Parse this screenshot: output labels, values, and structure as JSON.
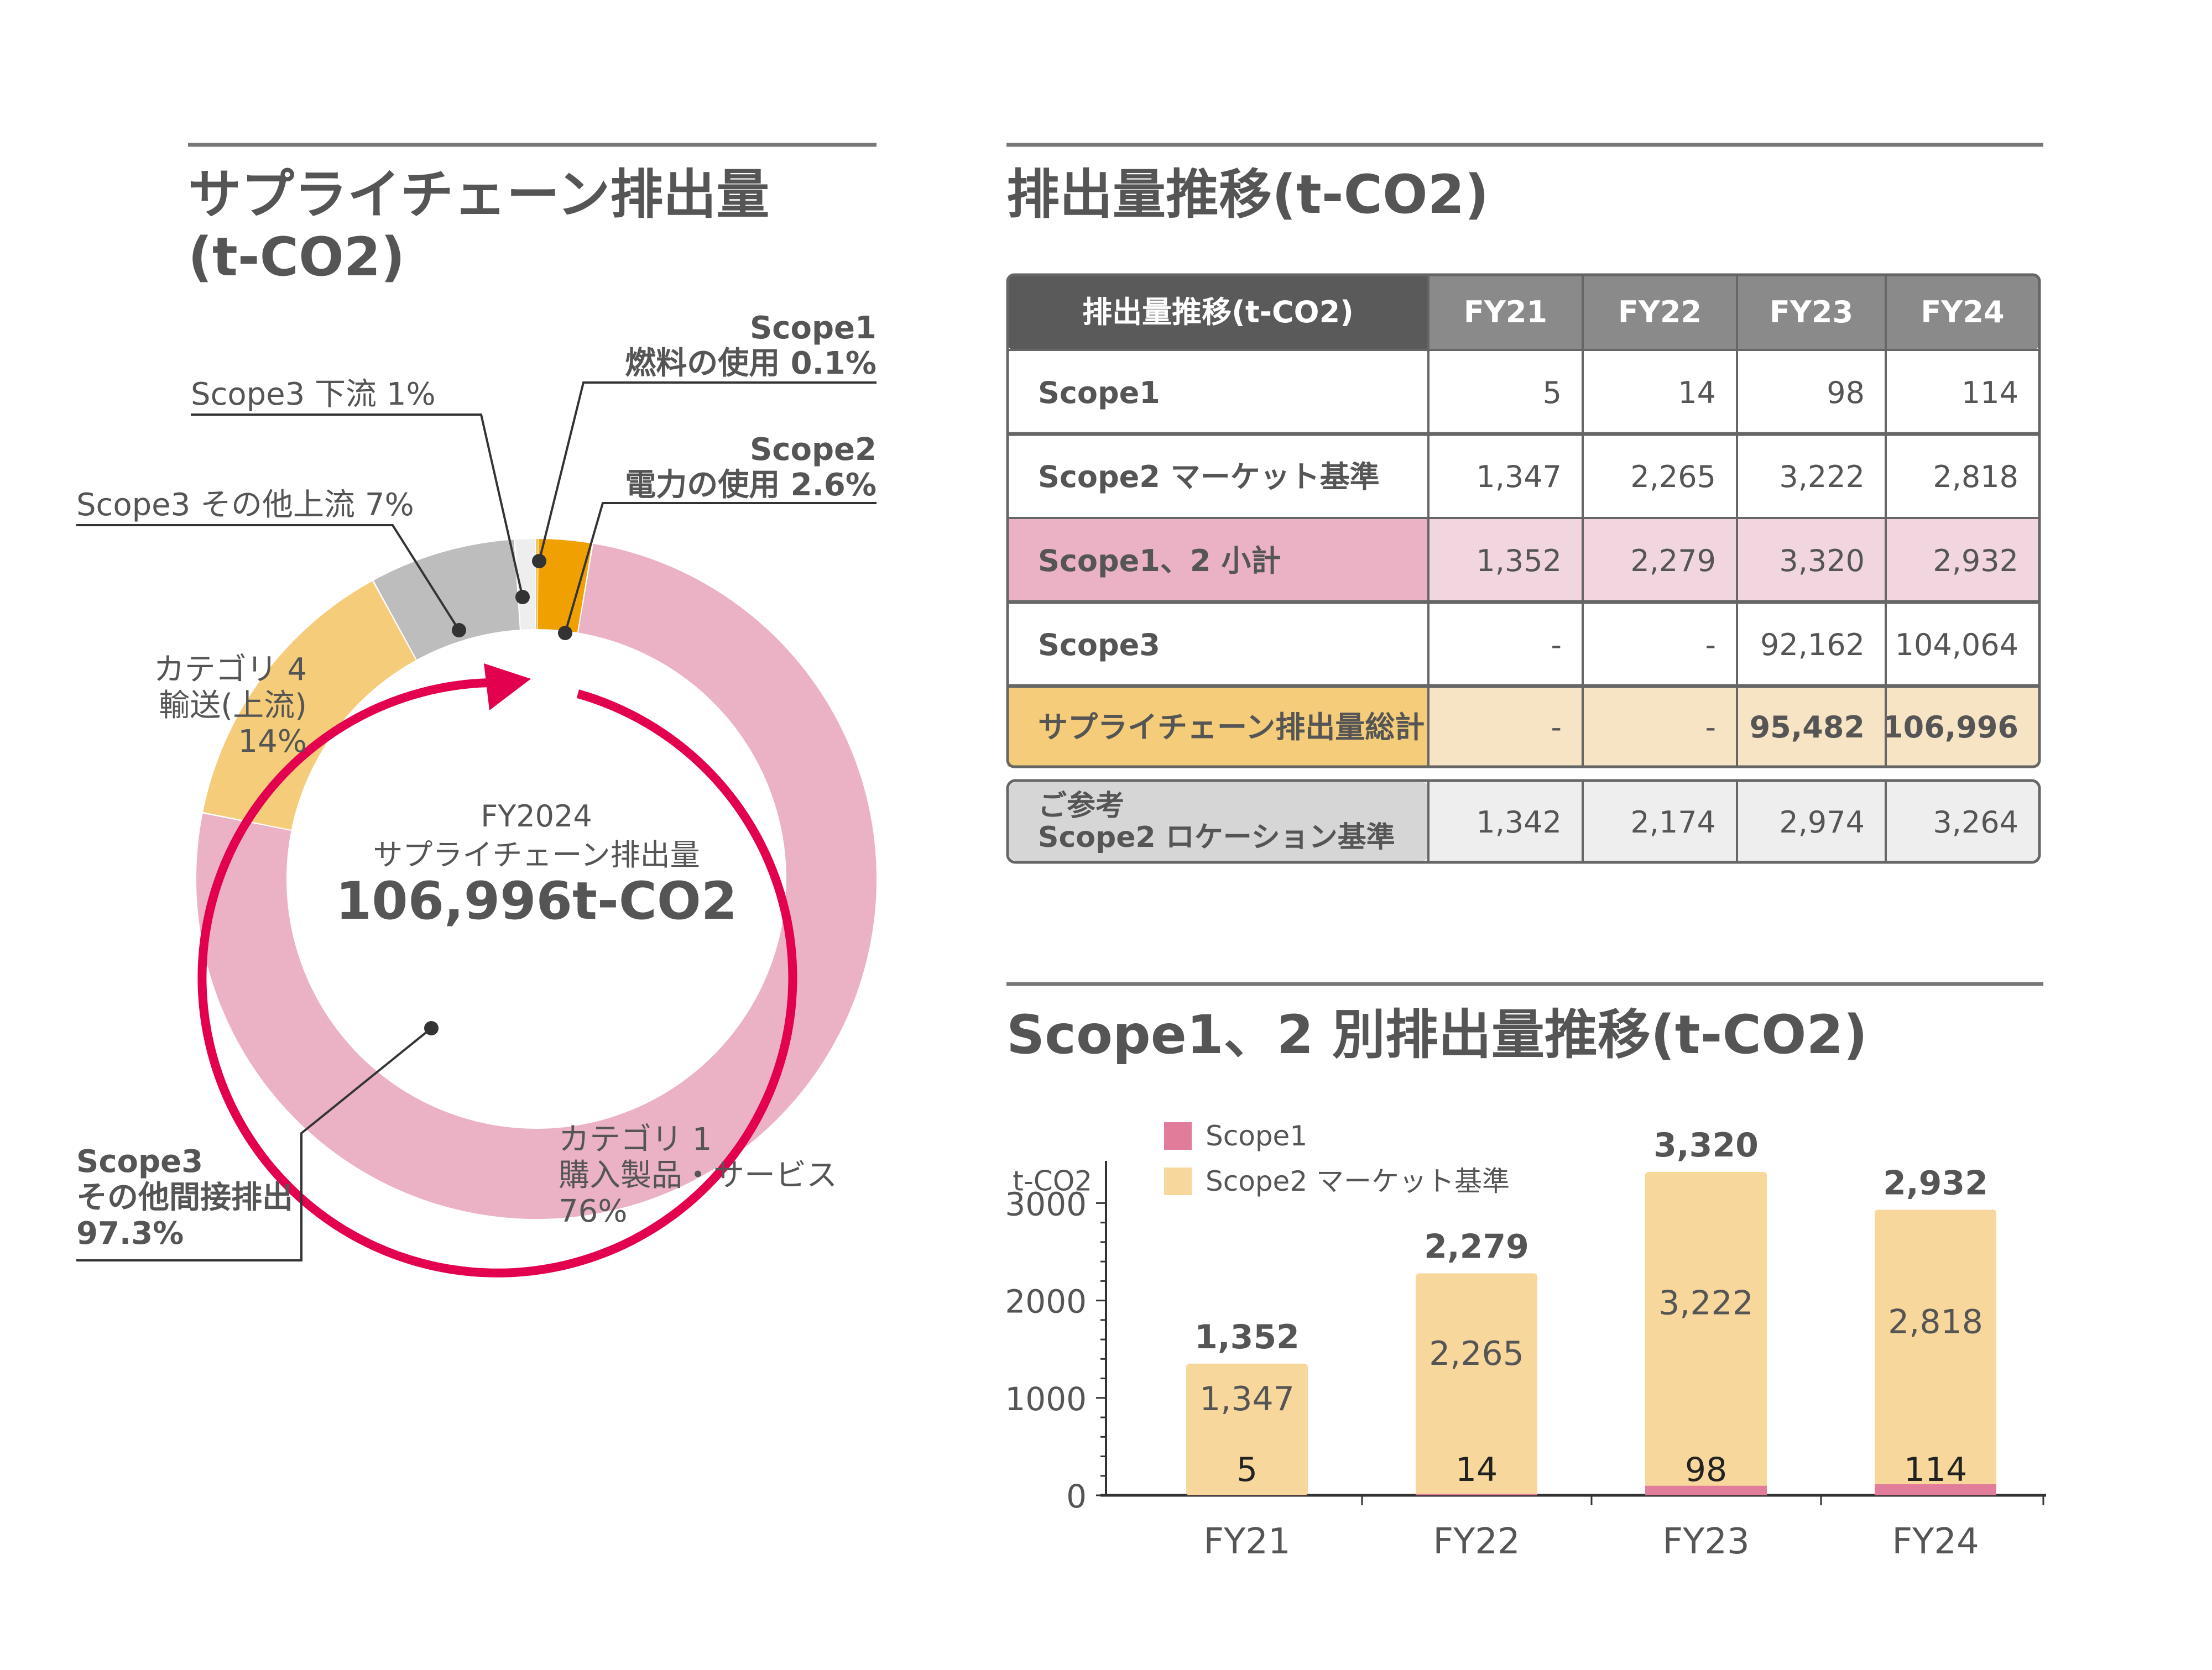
{
  "colors": {
    "text": "#555555",
    "pink": "#ebb2c5",
    "pink_light": "#f1d6df",
    "scope1_orange": "#f0a000",
    "yellow": "#f5cc7a",
    "yellow_light": "#f6e4c5",
    "gray": "#bdbdbd",
    "gray_light": "#eeeeee",
    "gray_mid": "#d6d6d6",
    "header_dark": "#5a5a5a",
    "header_gray": "#8a8a8a",
    "arrow_red": "#e2004f",
    "bar_scope1": "#e27c9b",
    "bar_scope2": "#f8d79c"
  },
  "left": {
    "title_line1": "サプライチェーン排出量",
    "title_line2": "(t-CO2)",
    "center": {
      "year": "FY2024",
      "label": "サプライチェーン排出量",
      "total": "106,996t-CO2"
    },
    "callouts": {
      "scope1_title": "Scope1",
      "scope1_desc": "燃料の使用 0.1%",
      "scope2_title": "Scope2",
      "scope2_desc": "電力の使用 2.6%",
      "scope3_down": "Scope3 下流 1%",
      "scope3_other_up": "Scope3 その他上流 7%",
      "cat4_line1": "カテゴリ 4",
      "cat4_line2": "輸送(上流)",
      "cat4_pct": "14%",
      "cat1_line1": "カテゴリ 1",
      "cat1_line2": "購入製品・サービス",
      "cat1_pct": "76%",
      "scope3_ind_line1": "Scope3",
      "scope3_ind_line2": "その他間接排出",
      "scope3_ind_pct": "97.3%"
    }
  },
  "table": {
    "title": "排出量推移(t-CO2)",
    "header": [
      "排出量推移(t-CO2)",
      "FY21",
      "FY22",
      "FY23",
      "FY24"
    ],
    "rows": [
      {
        "label": "Scope1",
        "values": [
          "5",
          "14",
          "98",
          "114"
        ]
      },
      {
        "label": "Scope2 マーケット基準",
        "values": [
          "1,347",
          "2,265",
          "3,222",
          "2,818"
        ]
      },
      {
        "label": "Scope1、2 小計",
        "values": [
          "1,352",
          "2,279",
          "3,320",
          "2,932"
        ]
      },
      {
        "label": "Scope3",
        "values": [
          "-",
          "-",
          "92,162",
          "104,064"
        ]
      },
      {
        "label": "サプライチェーン排出量総計",
        "values": [
          "-",
          "-",
          "95,482",
          "106,996"
        ]
      }
    ],
    "reference": {
      "label_line1": "ご参考",
      "label_line2": "Scope2 ロケーション基準",
      "values": [
        "1,342",
        "2,174",
        "2,974",
        "3,264"
      ]
    }
  },
  "bar_section": {
    "title": "Scope1、2 別排出量推移(t-CO2)"
  },
  "chart_data": [
    {
      "type": "pie",
      "title": "サプライチェーン排出量 (t-CO2)",
      "inner_ring": [
        {
          "label": "Scope1 燃料の使用",
          "value": 0.1
        },
        {
          "label": "Scope2 電力の使用",
          "value": 2.6
        },
        {
          "label": "Scope3 その他間接排出",
          "value": 97.3
        }
      ],
      "outer_ring": [
        {
          "label": "Scope1 燃料の使用",
          "value": 0.1,
          "color": "#f0a000"
        },
        {
          "label": "Scope2 電力の使用",
          "value": 2.6,
          "color": "#f0a000"
        },
        {
          "label": "カテゴリ 1 購入製品・サービス",
          "value": 76,
          "color": "#ebb2c5"
        },
        {
          "label": "カテゴリ 4 輸送(上流)",
          "value": 14,
          "color": "#f5cc7a"
        },
        {
          "label": "Scope3 その他上流",
          "value": 7,
          "color": "#bdbdbd"
        },
        {
          "label": "Scope3 下流",
          "value": 1,
          "color": "#eeeeee"
        }
      ]
    },
    {
      "type": "bar",
      "stacked": true,
      "title": "Scope1、2 別排出量推移(t-CO2)",
      "ylabel": "t-CO2",
      "categories": [
        "FY21",
        "FY22",
        "FY23",
        "FY24"
      ],
      "series": [
        {
          "name": "Scope1",
          "values": [
            5,
            14,
            98,
            114
          ],
          "color": "#e27c9b"
        },
        {
          "name": "Scope2 マーケット基準",
          "values": [
            1347,
            2265,
            3222,
            2818
          ],
          "color": "#f8d79c"
        }
      ],
      "totals": [
        "1,352",
        "2,279",
        "3,320",
        "2,932"
      ],
      "segment_labels": {
        "Scope1": [
          "5",
          "14",
          "98",
          "114"
        ],
        "Scope2 マーケット基準": [
          "1,347",
          "2,265",
          "3,222",
          "2,818"
        ]
      },
      "ylim": [
        0,
        3300
      ],
      "yticks": [
        0,
        1000,
        2000,
        3000
      ],
      "legend": "top-left"
    }
  ]
}
